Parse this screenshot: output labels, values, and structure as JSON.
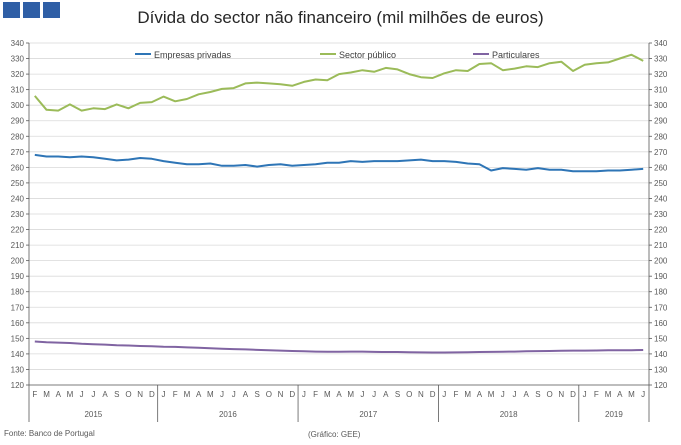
{
  "header": {
    "logo_blocks": 3,
    "title": "Dívida do sector não financeiro (mil milhões de euros)"
  },
  "footer": {
    "source": "Fonte: Banco de Portugal",
    "credit": "(Gráfico: GEE)"
  },
  "colors": {
    "logo": "#2f5fa6",
    "empresas": "#2e75b6",
    "sector_publico": "#9bbb59",
    "particulares": "#8064a2",
    "grid": "#d9d9d9",
    "axis": "#595959"
  },
  "chart_data": {
    "type": "line",
    "title": "Dívida do sector não financeiro (mil milhões de euros)",
    "ylim": [
      120,
      340
    ],
    "y_ticks": [
      120,
      130,
      140,
      150,
      160,
      170,
      180,
      190,
      200,
      210,
      220,
      230,
      240,
      250,
      260,
      270,
      280,
      290,
      300,
      310,
      320,
      330,
      340
    ],
    "y_axis_left_and_right": true,
    "grid": true,
    "legend_position": "top",
    "x_month_labels": [
      "F",
      "M",
      "A",
      "M",
      "J",
      "J",
      "A",
      "S",
      "O",
      "N",
      "D",
      "J",
      "F",
      "M",
      "A",
      "M",
      "J",
      "J",
      "A",
      "S",
      "O",
      "N",
      "D",
      "J",
      "F",
      "M",
      "A",
      "M",
      "J",
      "J",
      "A",
      "S",
      "O",
      "N",
      "D",
      "J",
      "F",
      "M",
      "A",
      "M",
      "J",
      "J",
      "A",
      "S",
      "O",
      "N",
      "D",
      "J",
      "F",
      "M",
      "A",
      "M",
      "J"
    ],
    "x_year_labels": [
      {
        "label": "2015",
        "start": 0,
        "end": 10
      },
      {
        "label": "2016",
        "start": 11,
        "end": 22
      },
      {
        "label": "2017",
        "start": 23,
        "end": 34
      },
      {
        "label": "2018",
        "start": 35,
        "end": 46
      },
      {
        "label": "2019",
        "start": 47,
        "end": 52
      }
    ],
    "series": [
      {
        "name": "Empresas privadas",
        "color": "#2e75b6",
        "values": [
          268,
          267,
          267,
          266.5,
          267,
          266.5,
          265.5,
          264.5,
          265,
          266,
          265.5,
          264,
          263,
          262,
          262,
          262.5,
          261,
          261,
          261.5,
          260.5,
          261.5,
          262,
          261,
          261.5,
          262,
          263,
          263,
          264,
          263.5,
          264,
          264,
          264,
          264.5,
          265,
          264,
          264,
          263.5,
          262.5,
          262,
          258,
          259.5,
          259,
          258.5,
          259.5,
          258.5,
          258.5,
          257.5,
          257.5,
          257.5,
          258,
          258,
          258.5,
          259
        ]
      },
      {
        "name": "Sector público",
        "color": "#9bbb59",
        "values": [
          306,
          297,
          296.5,
          300.5,
          296.5,
          298,
          297.5,
          300.5,
          298,
          301.5,
          302,
          305.5,
          302.5,
          304,
          307,
          308.5,
          310.5,
          311,
          314,
          314.5,
          314,
          313.5,
          312.5,
          315,
          316.5,
          316,
          320,
          321,
          322.5,
          321.5,
          324,
          323,
          320,
          318,
          317.5,
          320.5,
          322.5,
          322,
          326.5,
          327,
          322.5,
          323.5,
          325,
          324.5,
          327,
          328,
          322,
          326,
          327,
          327.5,
          330,
          332.5,
          328.5
        ]
      },
      {
        "name": "Particulares",
        "color": "#8064a2",
        "values": [
          148,
          147.5,
          147.3,
          147,
          146.5,
          146.2,
          146,
          145.6,
          145.4,
          145.1,
          144.9,
          144.6,
          144.5,
          144.2,
          143.9,
          143.6,
          143.3,
          143.1,
          142.9,
          142.6,
          142.3,
          142.1,
          141.9,
          141.7,
          141.5,
          141.4,
          141.4,
          141.5,
          141.5,
          141.3,
          141.2,
          141.2,
          141.1,
          141,
          140.9,
          140.9,
          141,
          141.1,
          141.2,
          141.3,
          141.4,
          141.5,
          141.7,
          141.8,
          141.9,
          142,
          142.1,
          142.1,
          142.2,
          142.3,
          142.3,
          142.4,
          142.5
        ]
      }
    ]
  }
}
